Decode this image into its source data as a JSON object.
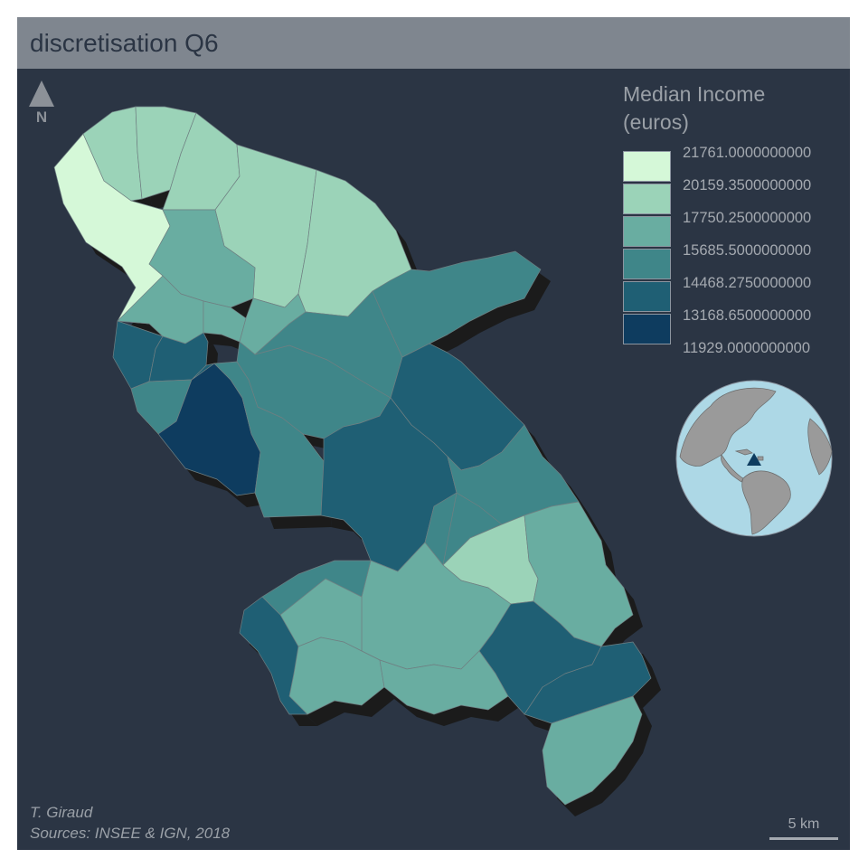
{
  "title": "discretisation Q6",
  "north_label": "N",
  "legend": {
    "title_line1": "Median Income",
    "title_line2": "(euros)",
    "break_labels": [
      "21761.0000000000",
      "20159.3500000000",
      "17750.2500000000",
      "15685.5000000000",
      "14468.2750000000",
      "13168.6500000000",
      "11929.0000000000"
    ],
    "class_colors": [
      "#0e3c5f",
      "#1f5f74",
      "#3f8689",
      "#69ada1",
      "#9bd3b8",
      "#d5f8d8"
    ]
  },
  "credits": {
    "author": "T. Giraud",
    "sources": "Sources: INSEE & IGN, 2018"
  },
  "scale_label": "5 km",
  "colors": {
    "background": "#2b3544",
    "title_bar": "#7f868f",
    "shadow": "#1b1b1b",
    "border": "#6f7f82",
    "globe_ocean": "#add8e6",
    "globe_land": "#9a9a9a",
    "highlight_marker": "#0e3c5f"
  },
  "chart_data": {
    "type": "choropleth",
    "variable": "Median Income (euros)",
    "method": "quantile, 6 classes",
    "breaks": [
      11929,
      13168.65,
      14468.275,
      15685.5,
      17750.25,
      20159.35,
      21761
    ],
    "communes": [
      {
        "class": 6
      },
      {
        "class": 5
      },
      {
        "class": 5
      },
      {
        "class": 5
      },
      {
        "class": 5
      },
      {
        "class": 4
      },
      {
        "class": 5
      },
      {
        "class": 4
      },
      {
        "class": 4
      },
      {
        "class": 4
      },
      {
        "class": 2
      },
      {
        "class": 2
      },
      {
        "class": 3
      },
      {
        "class": 1
      },
      {
        "class": 2
      },
      {
        "class": 3
      },
      {
        "class": 3
      },
      {
        "class": 3
      },
      {
        "class": 3
      },
      {
        "class": 2
      },
      {
        "class": 2
      },
      {
        "class": 3
      },
      {
        "class": 3
      },
      {
        "class": 5
      },
      {
        "class": 4
      },
      {
        "class": 4
      },
      {
        "class": 2
      },
      {
        "class": 2
      },
      {
        "class": 4
      },
      {
        "class": 3
      },
      {
        "class": 4
      },
      {
        "class": 4
      },
      {
        "class": 2
      },
      {
        "class": 4
      }
    ]
  }
}
